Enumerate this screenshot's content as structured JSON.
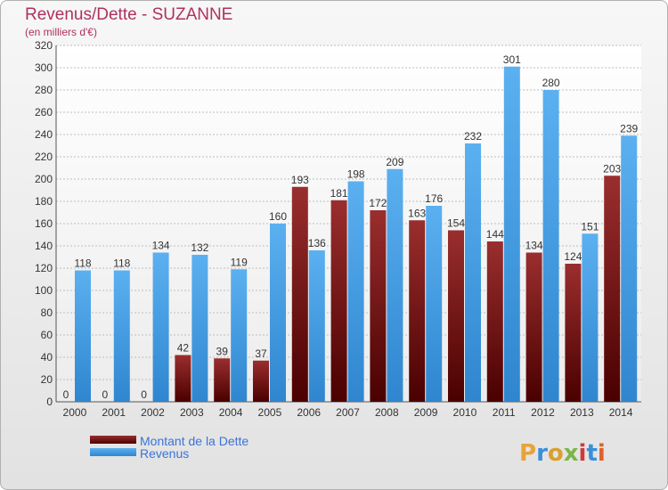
{
  "chart_data": {
    "type": "bar",
    "title": "Revenus/Dette - SUZANNE",
    "subtitle": "(en milliers d'€)",
    "categories": [
      "2000",
      "2001",
      "2002",
      "2003",
      "2004",
      "2005",
      "2006",
      "2007",
      "2008",
      "2009",
      "2010",
      "2011",
      "2012",
      "2013",
      "2014"
    ],
    "series": [
      {
        "name": "Montant de la Dette",
        "color": "#8b1a1a",
        "values": [
          0,
          0,
          0,
          42,
          39,
          37,
          193,
          181,
          172,
          163,
          154,
          144,
          134,
          124,
          203
        ]
      },
      {
        "name": "Revenus",
        "color": "#4da3e8",
        "values": [
          118,
          118,
          134,
          132,
          119,
          160,
          136,
          198,
          209,
          176,
          232,
          301,
          280,
          151,
          239
        ]
      }
    ],
    "ylim": [
      0,
      320
    ],
    "yticks": [
      0,
      20,
      40,
      60,
      80,
      100,
      120,
      140,
      160,
      180,
      200,
      220,
      240,
      260,
      280,
      300,
      320
    ],
    "grid": true
  },
  "legend": {
    "debt_label": "Montant de la Dette",
    "revenue_label": "Revenus"
  },
  "logo": {
    "text": "Proxiti",
    "colors": [
      "#e8a33a",
      "#3a8fd8",
      "#d8a030",
      "#7ab648",
      "#d03a3a",
      "#3a8fd8",
      "#e0602a"
    ]
  }
}
